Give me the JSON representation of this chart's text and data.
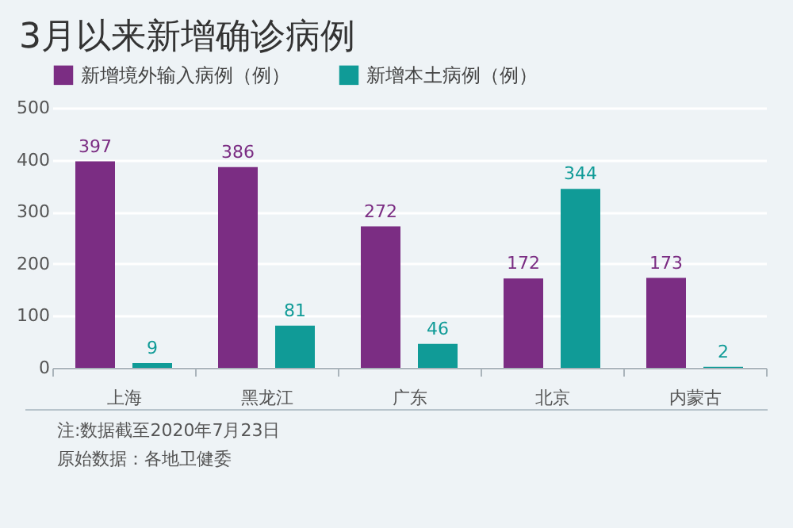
{
  "chart_data": {
    "type": "bar",
    "title": "3月以来新增确诊病例",
    "categories": [
      "上海",
      "黑龙江",
      "广东",
      "北京",
      "内蒙古"
    ],
    "series": [
      {
        "name": "新增境外输入病例（例）",
        "color": "#7b2d83",
        "values": [
          397,
          386,
          272,
          172,
          173
        ]
      },
      {
        "name": "新增本土病例（例）",
        "color": "#109b97",
        "values": [
          9,
          81,
          46,
          344,
          2
        ]
      }
    ],
    "ylim": [
      0,
      500
    ],
    "yticks": [
      0,
      100,
      200,
      300,
      400,
      500
    ],
    "grid": "y",
    "legend": "top left",
    "data_labels": true,
    "annotations": [
      "注:数据截至2020年7月23日",
      "原始数据：各地卫健委"
    ]
  }
}
